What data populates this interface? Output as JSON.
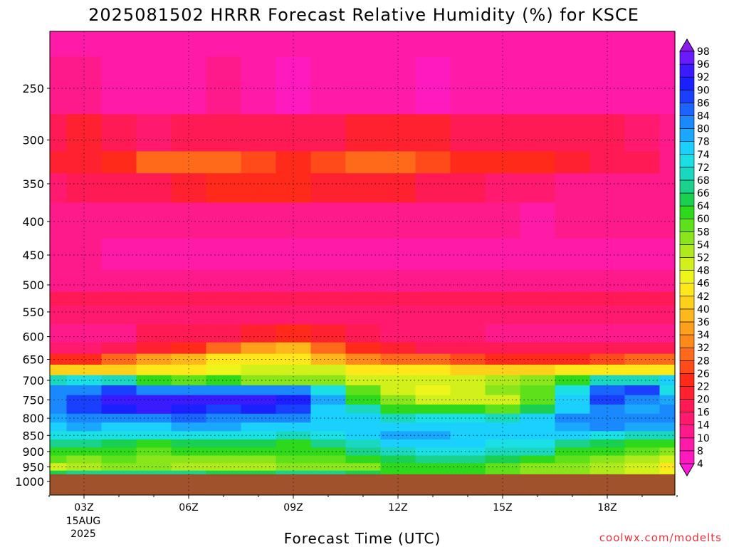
{
  "chart_data": {
    "type": "heatmap",
    "title": "2025081502 HRRR Forecast Relative Humidity (%) for KSCE",
    "xlabel": "Forecast Time (UTC)",
    "ylabel": "",
    "credit": "coolwx.com/modelts",
    "x_ticks": [
      "03Z",
      "06Z",
      "09Z",
      "12Z",
      "15Z",
      "18Z"
    ],
    "x_date_line1": "15AUG",
    "x_date_line2": "2025",
    "x_hours": [
      2,
      3,
      4,
      5,
      6,
      7,
      8,
      9,
      10,
      11,
      12,
      13,
      14,
      15,
      16,
      17,
      18,
      19,
      20
    ],
    "y_ticks": [
      250,
      300,
      350,
      400,
      450,
      500,
      550,
      600,
      650,
      700,
      750,
      800,
      850,
      900,
      950,
      1000
    ],
    "y_levels": [
      200,
      250,
      300,
      325,
      350,
      400,
      450,
      500,
      525,
      550,
      600,
      625,
      650,
      675,
      700,
      725,
      750,
      775,
      800,
      825,
      850,
      875,
      900,
      925,
      950,
      975
    ],
    "ground_level": 975,
    "colorbar_levels": [
      4,
      8,
      10,
      14,
      16,
      20,
      22,
      26,
      28,
      32,
      34,
      36,
      40,
      42,
      46,
      48,
      52,
      54,
      58,
      60,
      64,
      66,
      68,
      72,
      74,
      78,
      80,
      84,
      86,
      90,
      92,
      96,
      98
    ],
    "colorbar_colors": [
      "#ff1ad6",
      "#ff1ac0",
      "#ff1aa8",
      "#ff1a8c",
      "#ff1a70",
      "#ff1a55",
      "#ff2030",
      "#ff2a1a",
      "#ff4a1a",
      "#ff6a1a",
      "#ff8a1a",
      "#ffa01a",
      "#ffb81a",
      "#ffd01a",
      "#ffe81a",
      "#eef51a",
      "#d2f01a",
      "#b0ea1a",
      "#8ae61a",
      "#5ee01a",
      "#2ed81a",
      "#1ad050",
      "#1ad28c",
      "#1ad8c0",
      "#1ae0e6",
      "#1ad0ff",
      "#1aa8ff",
      "#1a88ff",
      "#1a64ff",
      "#1a40ff",
      "#1a20ff",
      "#3a1aff",
      "#6a1aff",
      "#8a1aee"
    ],
    "grid": true,
    "legend_position": "right",
    "values": [
      [
        8,
        8,
        8,
        8,
        8,
        8,
        8,
        8,
        8,
        8,
        8,
        8,
        8,
        8,
        8,
        8,
        8,
        8,
        8
      ],
      [
        10,
        10,
        8,
        8,
        8,
        10,
        8,
        6,
        8,
        8,
        8,
        6,
        8,
        8,
        8,
        8,
        8,
        8,
        8
      ],
      [
        18,
        21,
        18,
        14,
        16,
        18,
        16,
        16,
        18,
        20,
        20,
        20,
        18,
        16,
        16,
        16,
        16,
        14,
        12
      ],
      [
        20,
        20,
        22,
        28,
        30,
        28,
        26,
        24,
        26,
        28,
        28,
        26,
        24,
        22,
        22,
        20,
        18,
        16,
        12
      ],
      [
        14,
        16,
        16,
        18,
        20,
        22,
        22,
        22,
        20,
        20,
        20,
        18,
        16,
        14,
        14,
        12,
        12,
        10,
        10
      ],
      [
        10,
        10,
        10,
        10,
        10,
        10,
        10,
        10,
        12,
        12,
        12,
        10,
        10,
        10,
        8,
        10,
        10,
        10,
        10
      ],
      [
        10,
        10,
        8,
        8,
        8,
        8,
        8,
        8,
        8,
        8,
        8,
        8,
        8,
        8,
        8,
        8,
        8,
        8,
        8
      ],
      [
        12,
        12,
        12,
        12,
        12,
        12,
        12,
        12,
        12,
        12,
        12,
        12,
        12,
        12,
        12,
        12,
        12,
        12,
        12
      ],
      [
        18,
        16,
        16,
        18,
        18,
        18,
        16,
        16,
        16,
        16,
        16,
        16,
        16,
        16,
        16,
        16,
        19,
        16,
        16
      ],
      [
        14,
        14,
        14,
        14,
        14,
        14,
        14,
        14,
        14,
        14,
        14,
        14,
        14,
        14,
        14,
        14,
        14,
        14,
        14
      ],
      [
        12,
        12,
        12,
        16,
        16,
        18,
        20,
        22,
        20,
        16,
        14,
        14,
        14,
        12,
        12,
        12,
        12,
        12,
        12
      ],
      [
        14,
        14,
        16,
        20,
        24,
        28,
        34,
        36,
        30,
        24,
        20,
        18,
        18,
        16,
        16,
        16,
        16,
        16,
        16
      ],
      [
        22,
        24,
        28,
        34,
        38,
        42,
        44,
        42,
        38,
        32,
        30,
        28,
        26,
        24,
        24,
        24,
        26,
        28,
        30
      ],
      [
        40,
        40,
        40,
        42,
        44,
        46,
        48,
        50,
        48,
        44,
        42,
        42,
        40,
        40,
        40,
        42,
        42,
        42,
        42
      ],
      [
        70,
        72,
        70,
        62,
        58,
        60,
        56,
        56,
        54,
        50,
        50,
        50,
        50,
        52,
        54,
        62,
        70,
        70,
        74
      ],
      [
        80,
        82,
        86,
        82,
        80,
        82,
        82,
        80,
        72,
        58,
        50,
        46,
        48,
        54,
        58,
        72,
        84,
        86,
        72
      ],
      [
        82,
        86,
        92,
        94,
        92,
        92,
        94,
        90,
        78,
        62,
        54,
        50,
        48,
        50,
        58,
        76,
        86,
        82,
        78
      ],
      [
        82,
        86,
        90,
        92,
        90,
        88,
        90,
        86,
        76,
        68,
        62,
        62,
        60,
        58,
        64,
        76,
        80,
        78,
        80
      ],
      [
        78,
        80,
        82,
        82,
        84,
        82,
        82,
        80,
        76,
        74,
        70,
        72,
        72,
        70,
        74,
        80,
        82,
        80,
        80
      ],
      [
        76,
        78,
        76,
        76,
        78,
        78,
        76,
        74,
        76,
        74,
        76,
        76,
        76,
        76,
        76,
        78,
        80,
        78,
        78
      ],
      [
        72,
        72,
        72,
        72,
        72,
        72,
        72,
        70,
        72,
        74,
        78,
        78,
        76,
        76,
        76,
        74,
        72,
        70,
        70
      ],
      [
        66,
        66,
        64,
        62,
        64,
        64,
        64,
        62,
        66,
        70,
        74,
        74,
        74,
        72,
        72,
        66,
        64,
        62,
        62
      ],
      [
        62,
        60,
        60,
        58,
        60,
        60,
        60,
        60,
        62,
        66,
        70,
        72,
        72,
        70,
        68,
        62,
        60,
        58,
        56
      ],
      [
        58,
        56,
        58,
        56,
        54,
        54,
        56,
        58,
        58,
        60,
        64,
        66,
        66,
        64,
        62,
        58,
        56,
        52,
        50
      ],
      [
        50,
        52,
        54,
        54,
        52,
        52,
        52,
        54,
        54,
        56,
        60,
        60,
        60,
        58,
        56,
        54,
        52,
        48,
        44
      ],
      [
        64,
        66,
        66,
        66,
        66,
        64,
        64,
        66,
        66,
        64,
        62,
        62,
        60,
        58,
        56,
        54,
        52,
        50,
        46
      ]
    ]
  }
}
